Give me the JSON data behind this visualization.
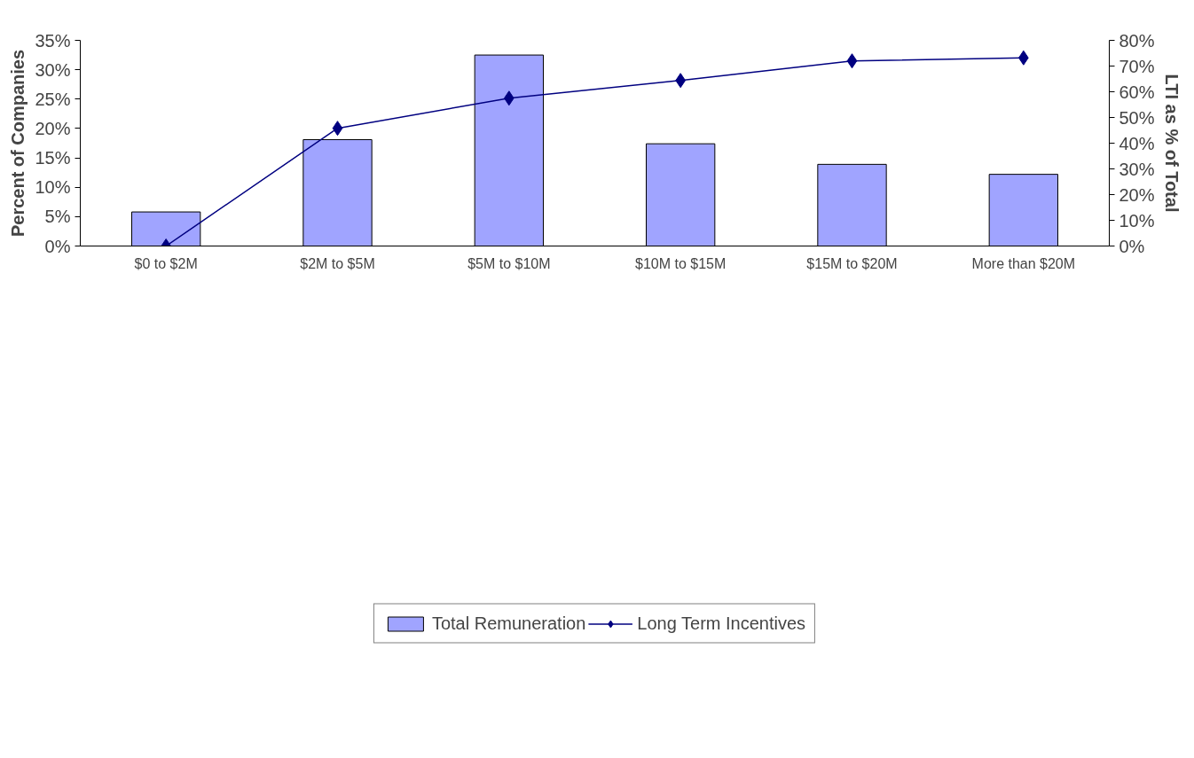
{
  "chart_data": {
    "type": "bar",
    "ylabel": "Percent of Companies",
    "y2label": "LTI as % of Total",
    "categories": [
      "$0 to $2M",
      "$2M to $5M",
      "$5M to $10M",
      "$10M to $15M",
      "$15M to $20M",
      "More than $20M"
    ],
    "series": [
      {
        "name": "Total Remuneration",
        "color": "#a0a4ff",
        "values": [
          5.8,
          18.1,
          32.5,
          17.4,
          13.9,
          12.2
        ]
      },
      {
        "name": "Long Term Incentives",
        "type": "line",
        "axis": "y2",
        "color": "#000080",
        "marker": "diamond",
        "values": [
          0,
          45.8,
          57.5,
          64.4,
          72.0,
          73.2
        ]
      }
    ],
    "ylim": [
      0,
      35
    ],
    "yticks": [
      {
        "value": 0,
        "label": "0%"
      },
      {
        "value": 5,
        "label": "5%"
      },
      {
        "value": 10,
        "label": "10%"
      },
      {
        "value": 15,
        "label": "15%"
      },
      {
        "value": 20,
        "label": "20%"
      },
      {
        "value": 25,
        "label": "25%"
      },
      {
        "value": 30,
        "label": "30%"
      },
      {
        "value": 35,
        "label": "35%"
      }
    ],
    "y2lim": [
      0,
      80
    ],
    "y2ticks": [
      {
        "value": 0,
        "label": "0%"
      },
      {
        "value": 10,
        "label": "10%"
      },
      {
        "value": 20,
        "label": "20%"
      },
      {
        "value": 30,
        "label": "30%"
      },
      {
        "value": 40,
        "label": "40%"
      },
      {
        "value": 50,
        "label": "50%"
      },
      {
        "value": 60,
        "label": "60%"
      },
      {
        "value": 70,
        "label": "70%"
      },
      {
        "value": 80,
        "label": "80%"
      }
    ],
    "grid": false,
    "legend": "bottom"
  }
}
